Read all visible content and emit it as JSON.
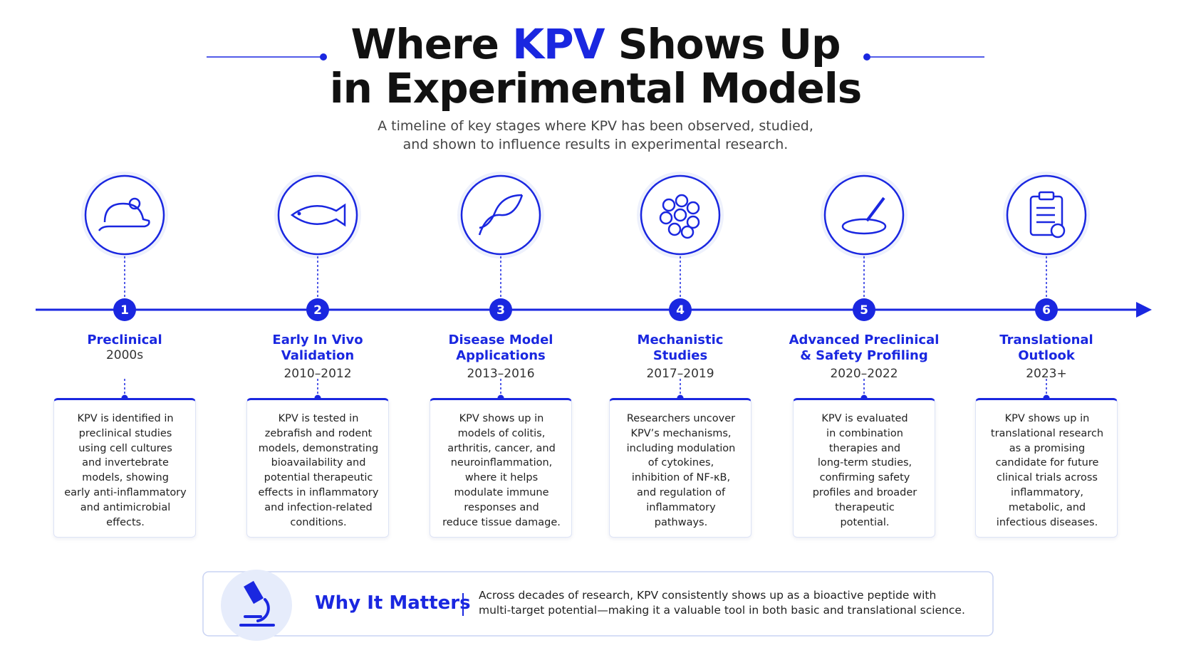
{
  "header": {
    "title_line1": [
      "Where",
      "KPV",
      "Shows Up"
    ],
    "title_line2": "in Experimental Models",
    "subtitle_lines": [
      "A timeline of key stages where KPV has been observed, studied,",
      "and shown to influence results in experimental research."
    ]
  },
  "stages": [
    {
      "number": "1",
      "title_lines": [
        "Preclinical"
      ],
      "period": "2000s",
      "description_lines": [
        "KPV is identified in",
        "preclinical studies",
        "using cell cultures",
        "and invertebrate",
        "models, showing",
        "early anti-inflammatory",
        "and antimicrobial",
        "effects."
      ]
    },
    {
      "number": "2",
      "title_lines": [
        "Early In Vivo",
        "Validation"
      ],
      "period": "2010–2012",
      "description_lines": [
        "KPV is tested in",
        "zebrafish and rodent",
        "models, demonstrating",
        "bioavailability and",
        "potential therapeutic",
        "effects in inflammatory",
        "and infection-related",
        "conditions."
      ]
    },
    {
      "number": "3",
      "title_lines": [
        "Disease Model",
        "Applications"
      ],
      "period": "2013–2016",
      "description_lines": [
        "KPV shows up in",
        "models of colitis,",
        "arthritis, cancer, and",
        "neuroinflammation,",
        "where it helps",
        "modulate immune",
        "responses and",
        "reduce tissue damage."
      ]
    },
    {
      "number": "4",
      "title_lines": [
        "Mechanistic",
        "Studies"
      ],
      "period": "2017–2019",
      "description_lines": [
        "Researchers uncover",
        "KPV’s mechanisms,",
        "including modulation",
        "of cytokines,",
        "inhibition of NF-κB,",
        "and regulation of",
        "inflammatory",
        "pathways."
      ]
    },
    {
      "number": "5",
      "title_lines": [
        "Advanced Preclinical",
        "& Safety Profiling"
      ],
      "period": "2020–2022",
      "description_lines": [
        "KPV is evaluated",
        "in combination",
        "therapies and",
        "long-term studies,",
        "confirming safety",
        "profiles and broader",
        "therapeutic",
        "potential."
      ]
    },
    {
      "number": "6",
      "title_lines": [
        "Translational",
        "Outlook"
      ],
      "period": "2023+",
      "description_lines": [
        "KPV shows up in",
        "translational research",
        "as a promising",
        "candidate for future",
        "clinical trials across",
        "inflammatory,",
        "metabolic, and",
        "infectious diseases."
      ]
    }
  ],
  "footer": {
    "label": "Why It Matters",
    "text_lines": [
      "Across decades of research, KPV consistently shows up as a bioactive peptide with",
      "multi-target potential—making it a valuable tool in both basic and translational science."
    ]
  }
}
